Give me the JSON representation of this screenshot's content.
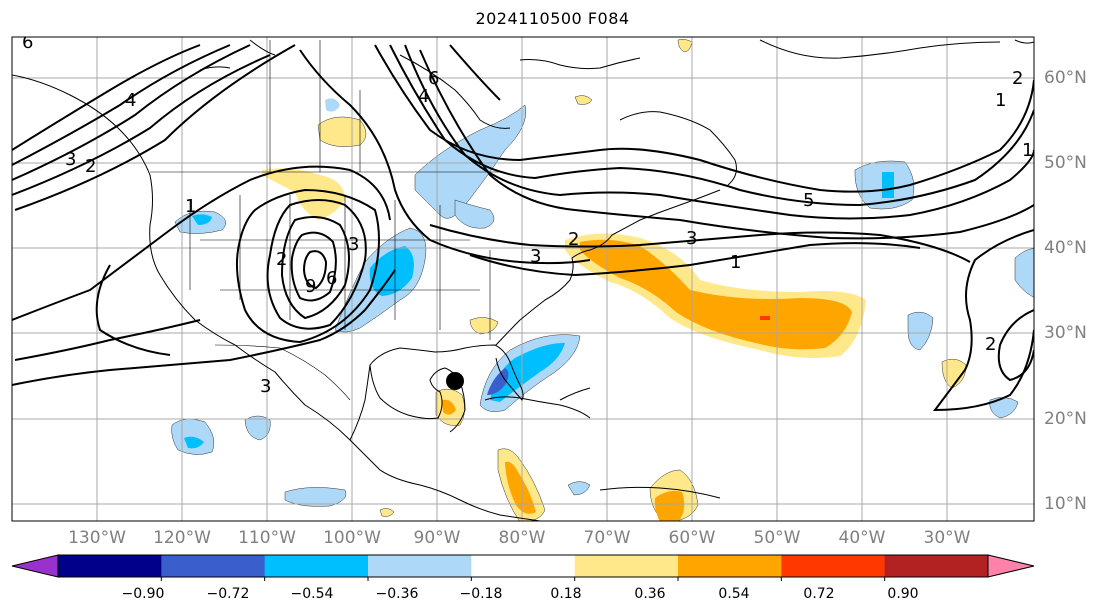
{
  "title": "2024110500 F084",
  "longitude_labels": [
    "130°W",
    "120°W",
    "110°W",
    "100°W",
    "90°W",
    "80°W",
    "70°W",
    "60°W",
    "50°W",
    "40°W",
    "30°W"
  ],
  "latitude_labels": [
    "60°N",
    "50°N",
    "40°N",
    "30°N",
    "20°N",
    "10°N"
  ],
  "colorbar": {
    "tick_labels": [
      "−0.90",
      "−0.72",
      "−0.54",
      "−0.36",
      "−0.18",
      "0.18",
      "0.36",
      "0.54",
      "0.72",
      "0.90"
    ],
    "colors": [
      "#9932CC",
      "#00008B",
      "#3A5FCD",
      "#00BFFF",
      "#ADD8F7",
      "#FFFFFF",
      "#FFE88A",
      "#FFA500",
      "#FF3800",
      "#B22222",
      "#FF82AB"
    ]
  },
  "contour_labels": [
    "6",
    "4",
    "3",
    "2",
    "6",
    "4",
    "1",
    "2",
    "3",
    "6",
    "9",
    "3",
    "3",
    "2",
    "1",
    "5",
    "3",
    "1",
    "2",
    "1",
    "2"
  ],
  "marker": "storm-center-dot"
}
